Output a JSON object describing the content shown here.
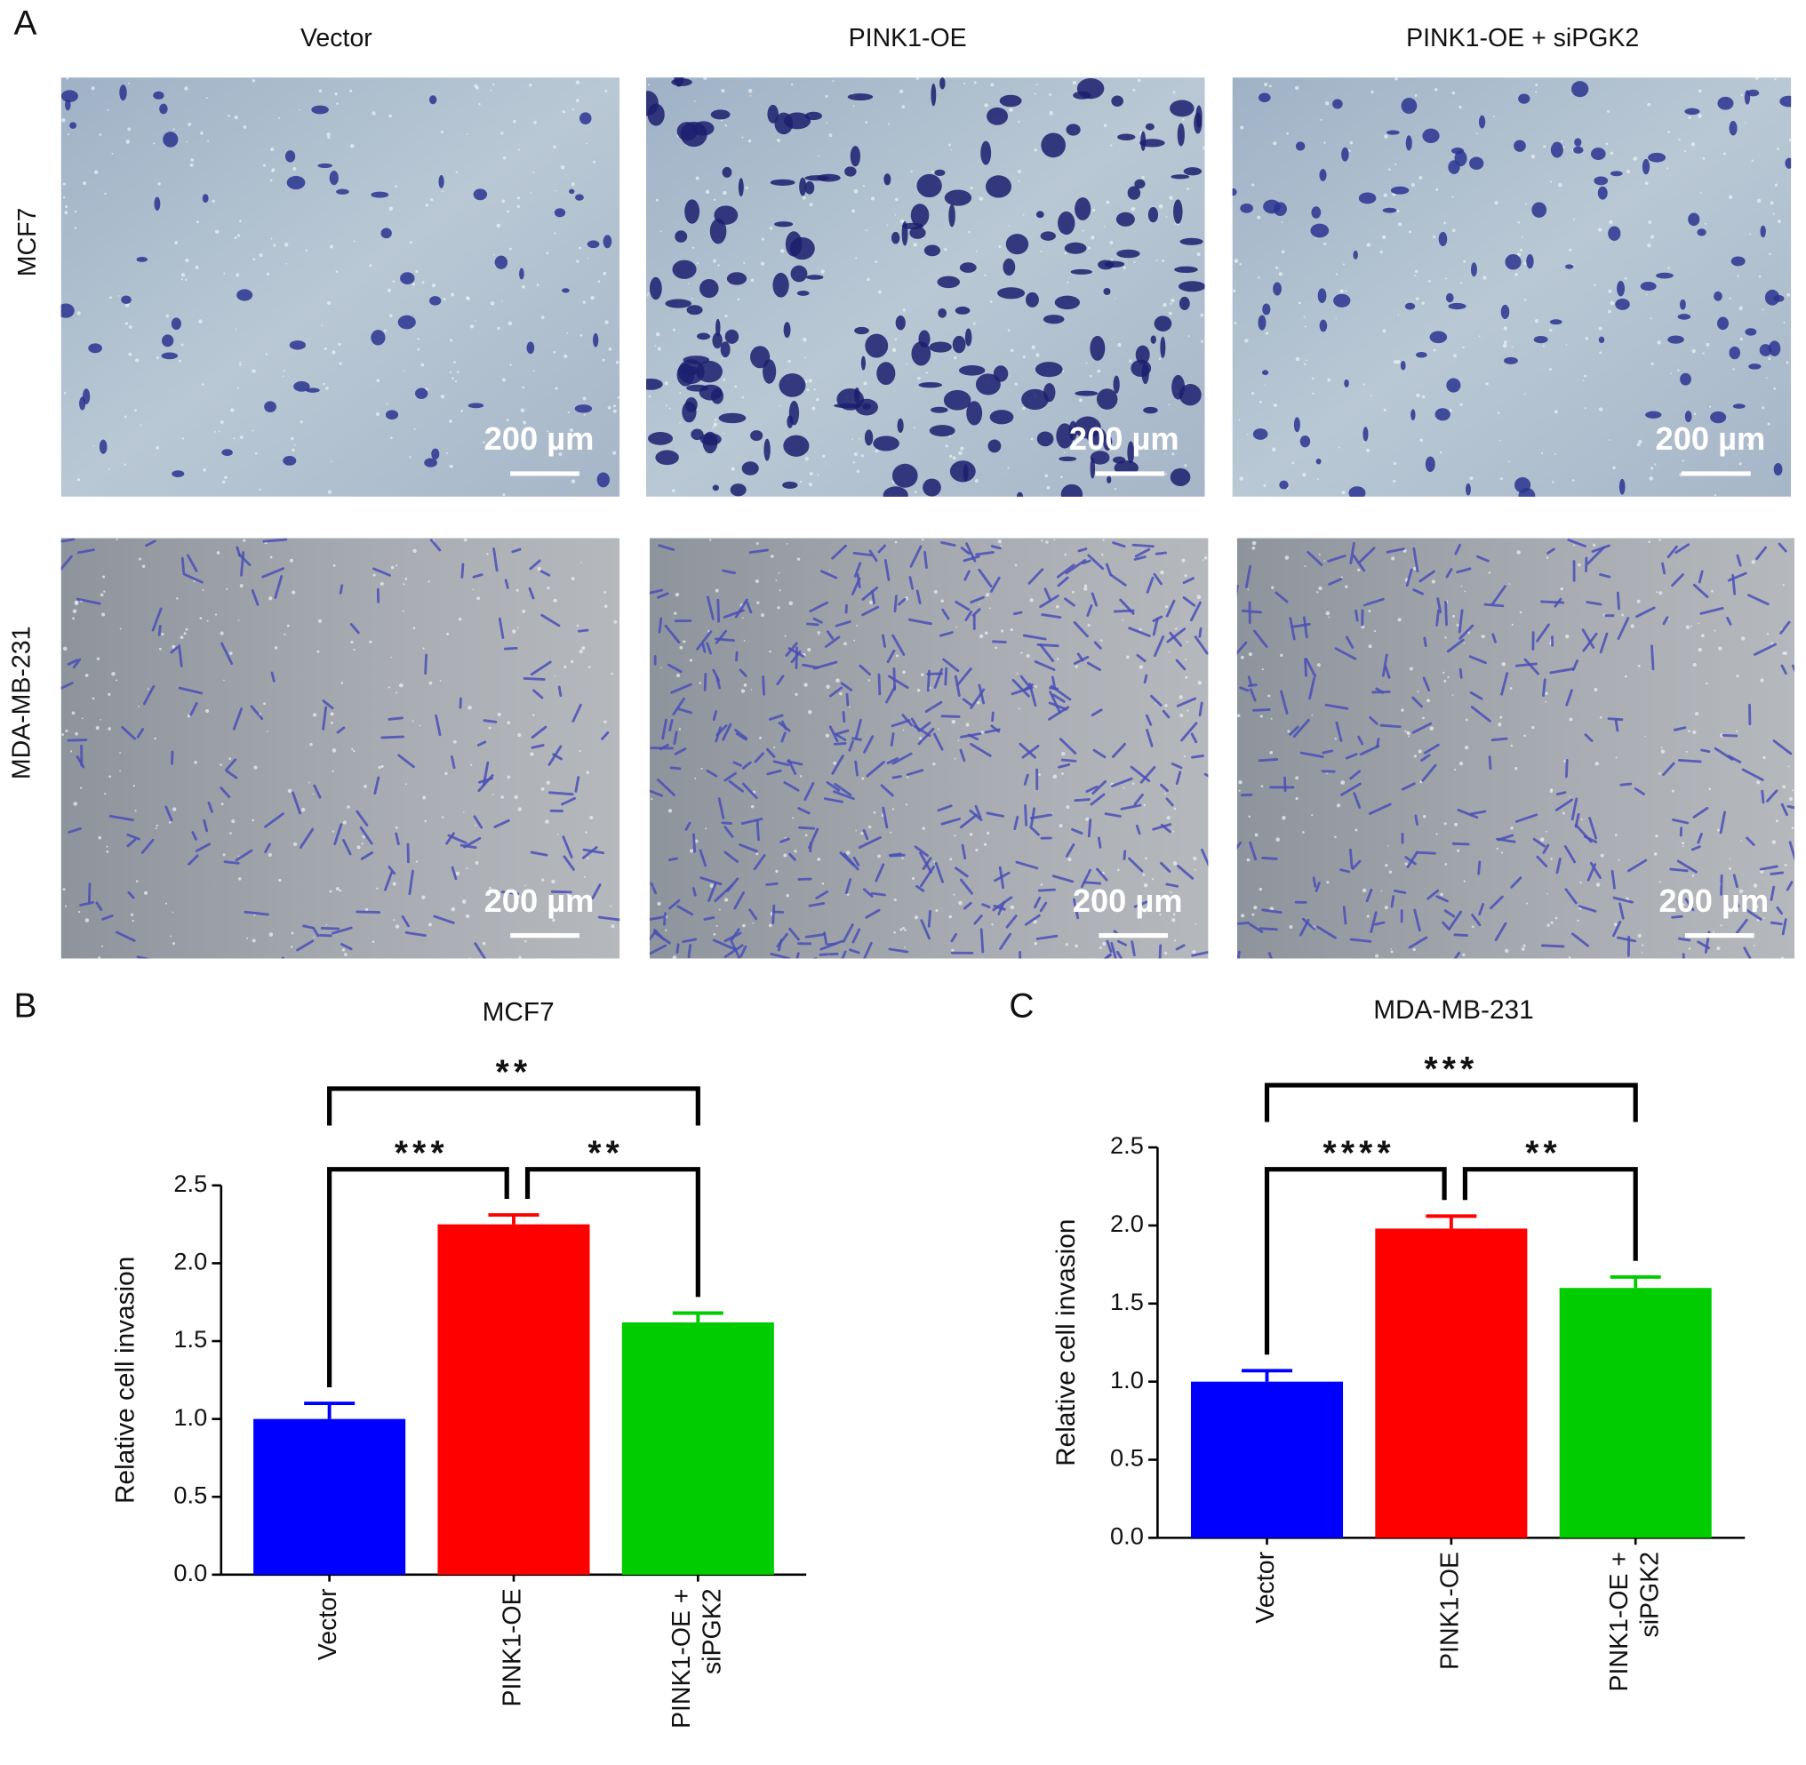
{
  "panel_labels": [
    "A",
    "B",
    "C"
  ],
  "micrographs": {
    "columns": [
      "Vector",
      "PINK1-OE",
      "PINK1-OE + siPGK2"
    ],
    "rows": [
      "MCF7",
      "MDA-MB-231"
    ],
    "scale_bar": "200 µm"
  },
  "chart_data": [
    {
      "type": "bar",
      "title": "MCF7",
      "ylabel": "Relative cell invasion",
      "categories": [
        "Vector",
        "PINK1-OE",
        "PINK1-OE + siPGK2"
      ],
      "values": [
        1.0,
        2.25,
        1.62
      ],
      "errors": [
        0.1,
        0.06,
        0.06
      ],
      "colors": [
        "#0000ff",
        "#ff0000",
        "#00cc00"
      ],
      "ylim": [
        0,
        2.5
      ],
      "yticks": [
        {
          "value": 0,
          "label": "0.0"
        },
        0.5,
        {
          "value": 1,
          "label": "1.0"
        },
        1.5,
        {
          "value": 2,
          "label": "2.0"
        },
        2.5
      ],
      "significance": [
        "**",
        "***",
        "**"
      ]
    },
    {
      "type": "bar",
      "title": "MDA-MB-231",
      "ylabel": "Relative cell invasion",
      "categories": [
        "Vector",
        "PINK1-OE",
        "PINK1-OE + siPGK2"
      ],
      "values": [
        1.0,
        1.98,
        1.6
      ],
      "errors": [
        0.07,
        0.08,
        0.07
      ],
      "colors": [
        "#0000ff",
        "#ff0000",
        "#00cc00"
      ],
      "ylim": [
        0,
        2.5
      ],
      "yticks": [
        {
          "value": 0,
          "label": "0.0"
        },
        0.5,
        {
          "value": 1,
          "label": "1.0"
        },
        1.5,
        {
          "value": 2,
          "label": "2.0"
        },
        2.5
      ],
      "significance": [
        "***",
        "****",
        "**"
      ]
    }
  ]
}
